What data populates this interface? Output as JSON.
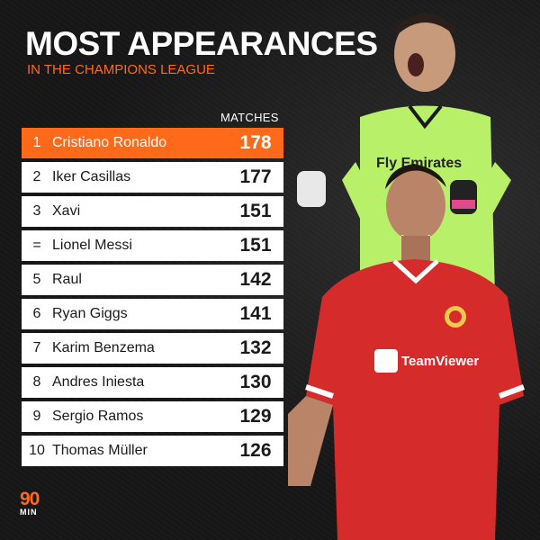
{
  "header": {
    "title": "MOST APPEARANCES",
    "subtitle": "IN THE CHAMPIONS LEAGUE",
    "column_label": "MATCHES"
  },
  "colors": {
    "accent": "#ff6a1a",
    "background": "#161616",
    "row": "#ffffff",
    "keeper_kit": "#b8f06a",
    "united_kit": "#d62b2b"
  },
  "rows": [
    {
      "rank": "1",
      "name": "Cristiano Ronaldo",
      "value": "178"
    },
    {
      "rank": "2",
      "name": "Iker Casillas",
      "value": "177"
    },
    {
      "rank": "3",
      "name": "Xavi",
      "value": "151"
    },
    {
      "rank": "=",
      "name": "Lionel Messi",
      "value": "151"
    },
    {
      "rank": "5",
      "name": "Raul",
      "value": "142"
    },
    {
      "rank": "6",
      "name": "Ryan Giggs",
      "value": "141"
    },
    {
      "rank": "7",
      "name": "Karim Benzema",
      "value": "132"
    },
    {
      "rank": "8",
      "name": "Andres Iniesta",
      "value": "130"
    },
    {
      "rank": "9",
      "name": "Sergio Ramos",
      "value": "129"
    },
    {
      "rank": "10",
      "name": "Thomas Müller",
      "value": "126"
    }
  ],
  "chart_data": {
    "type": "table",
    "title": "MOST APPEARANCES",
    "subtitle": "IN THE CHAMPIONS LEAGUE",
    "columns": [
      "",
      "",
      "MATCHES"
    ],
    "categories": [
      "Cristiano Ronaldo",
      "Iker Casillas",
      "Xavi",
      "Lionel Messi",
      "Raul",
      "Ryan Giggs",
      "Karim Benzema",
      "Andres Iniesta",
      "Sergio Ramos",
      "Thomas Müller"
    ],
    "values": [
      178,
      177,
      151,
      151,
      142,
      141,
      132,
      130,
      129,
      126
    ],
    "highlight": "Cristiano Ronaldo"
  },
  "shirts": {
    "left_sponsor": "Fly Emirates",
    "right_sponsor": "TeamViewer"
  },
  "logo": {
    "number": "90",
    "text": "MIN"
  }
}
